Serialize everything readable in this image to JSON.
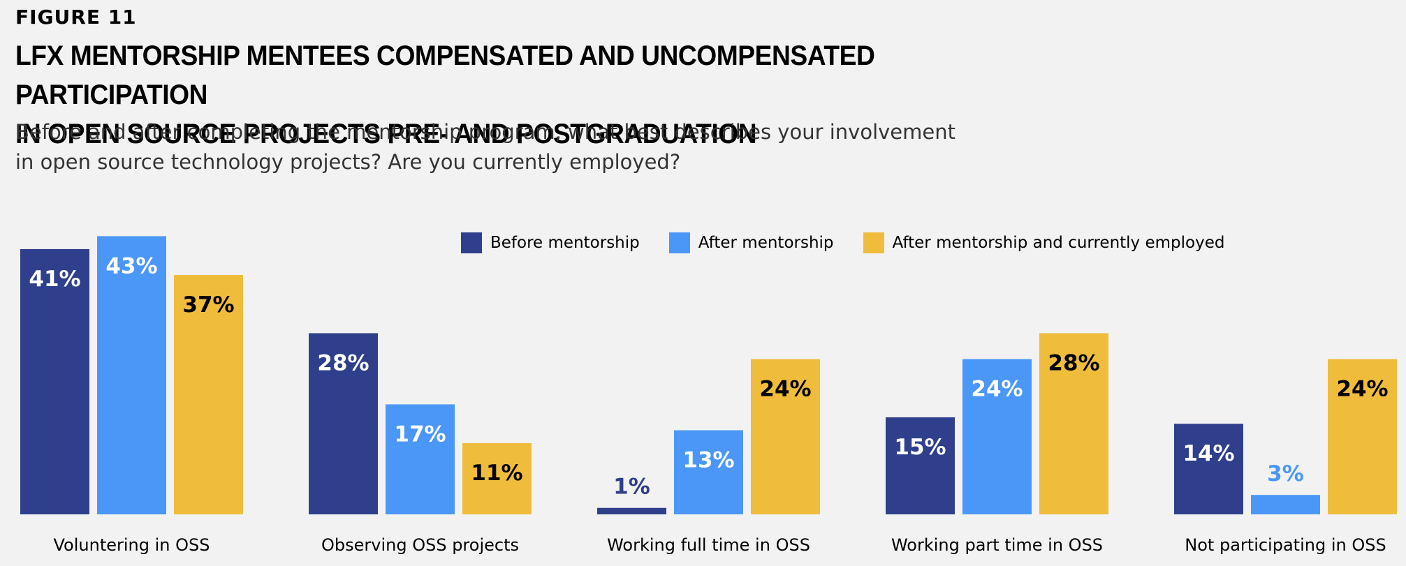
{
  "header": {
    "figure_label": "FIGURE 11",
    "title_line1": "LFX MENTORSHIP MENTEES COMPENSATED AND UNCOMPENSATED PARTICIPATION",
    "title_line2": "IN OPEN SOURCE PROJECTS PRE- AND POSTGRADUATION",
    "subtitle_line1": "Before and after completing the mentorship program, what best describes your involvement",
    "subtitle_line2": "in open source technology projects? Are you currently employed?"
  },
  "chart_data": {
    "type": "bar",
    "categories": [
      "Voluntering in OSS",
      "Observing OSS projects",
      "Working full time in OSS",
      "Working part time in OSS",
      "Not participating in OSS"
    ],
    "series": [
      {
        "name": "Before mentorship",
        "color": "#2f3f8c",
        "label_color": "#ffffff",
        "values": [
          41,
          28,
          1,
          15,
          14
        ]
      },
      {
        "name": "After mentorship",
        "color": "#4b97f7",
        "label_color": "#ffffff",
        "values": [
          43,
          17,
          13,
          24,
          3
        ]
      },
      {
        "name": "After mentorship and currently employed",
        "color": "#efbd3b",
        "label_color": "#000000",
        "values": [
          37,
          11,
          24,
          28,
          24
        ]
      }
    ],
    "value_suffix": "%",
    "ylim": [
      0,
      43
    ],
    "grid": false,
    "legend_position": "top-right"
  }
}
